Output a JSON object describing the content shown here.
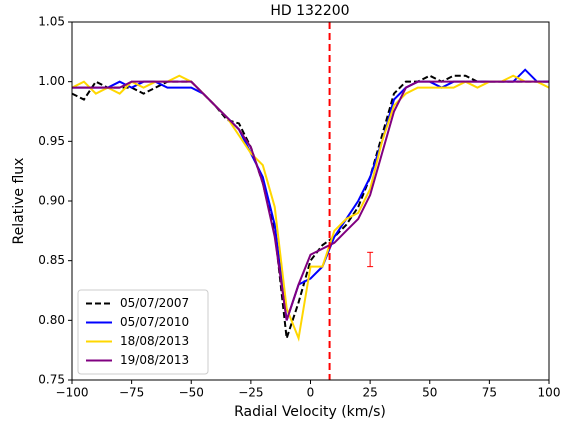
{
  "chart_data": {
    "type": "line",
    "title": "HD 132200",
    "x_label": "Radial Velocity (km/s)",
    "y_label": "Relative flux",
    "xlim": [
      -100,
      100
    ],
    "ylim": [
      0.75,
      1.05
    ],
    "xticks": [
      {
        "value": -100,
        "label": "−100"
      },
      {
        "value": -75,
        "label": "−75"
      },
      {
        "value": -50,
        "label": "−50"
      },
      {
        "value": -25,
        "label": "−25"
      },
      0,
      25,
      50,
      75,
      100
    ],
    "yticks": [
      {
        "value": 0.75,
        "label": "0.75"
      },
      {
        "value": 0.8,
        "label": "0.80"
      },
      {
        "value": 0.85,
        "label": "0.85"
      },
      {
        "value": 0.9,
        "label": "0.90"
      },
      {
        "value": 0.95,
        "label": "0.95"
      },
      {
        "value": 1.0,
        "label": "1.00"
      },
      {
        "value": 1.05,
        "label": "1.05"
      }
    ],
    "legend": "lower left",
    "x": [
      -100,
      -95,
      -90,
      -85,
      -80,
      -75,
      -70,
      -65,
      -60,
      -55,
      -50,
      -45,
      -40,
      -35,
      -30,
      -25,
      -20,
      -15,
      -10,
      -5,
      0,
      5,
      10,
      15,
      20,
      25,
      30,
      35,
      40,
      45,
      50,
      55,
      60,
      65,
      70,
      75,
      80,
      85,
      90,
      95,
      100
    ],
    "series": [
      {
        "name": "05/07/2007",
        "color": "#000000",
        "linestyle": "dashed",
        "values": [
          0.99,
          0.985,
          1.0,
          0.995,
          0.995,
          0.995,
          0.99,
          0.995,
          1.0,
          1.0,
          1.0,
          0.99,
          0.98,
          0.968,
          0.965,
          0.945,
          0.915,
          0.875,
          0.785,
          0.815,
          0.85,
          0.863,
          0.87,
          0.88,
          0.895,
          0.92,
          0.955,
          0.99,
          1.0,
          1.0,
          1.005,
          1.0,
          1.005,
          1.005,
          1.0,
          1.0,
          1.0,
          1.0,
          1.0,
          1.0,
          1.0
        ]
      },
      {
        "name": "05/07/2010",
        "color": "#0000ff",
        "linestyle": "solid",
        "values": [
          0.995,
          0.995,
          0.995,
          0.995,
          1.0,
          0.995,
          1.0,
          1.0,
          0.995,
          0.995,
          0.995,
          0.99,
          0.98,
          0.97,
          0.96,
          0.94,
          0.92,
          0.88,
          0.8,
          0.83,
          0.835,
          0.845,
          0.87,
          0.885,
          0.9,
          0.92,
          0.95,
          0.985,
          0.995,
          1.0,
          1.0,
          0.995,
          1.0,
          1.0,
          1.0,
          1.0,
          1.0,
          1.0,
          1.01,
          1.0,
          1.0
        ]
      },
      {
        "name": "18/08/2013",
        "color": "#ffd700",
        "linestyle": "solid",
        "values": [
          0.995,
          1.0,
          0.99,
          0.995,
          0.99,
          1.0,
          0.995,
          1.0,
          1.0,
          1.005,
          1.0,
          0.99,
          0.98,
          0.97,
          0.955,
          0.94,
          0.93,
          0.895,
          0.81,
          0.785,
          0.845,
          0.845,
          0.875,
          0.885,
          0.89,
          0.91,
          0.95,
          0.98,
          0.99,
          0.995,
          0.995,
          0.995,
          0.995,
          1.0,
          0.995,
          1.0,
          1.0,
          1.005,
          1.0,
          1.0,
          0.995
        ]
      },
      {
        "name": "19/08/2013",
        "color": "#800080",
        "linestyle": "solid",
        "values": [
          0.995,
          0.995,
          0.995,
          0.995,
          0.995,
          1.0,
          1.0,
          1.0,
          1.0,
          1.0,
          1.0,
          0.99,
          0.98,
          0.97,
          0.96,
          0.945,
          0.915,
          0.87,
          0.8,
          0.83,
          0.855,
          0.86,
          0.865,
          0.875,
          0.885,
          0.905,
          0.94,
          0.975,
          0.995,
          1.0,
          1.0,
          1.0,
          1.0,
          1.0,
          1.0,
          1.0,
          1.0,
          1.0,
          1.0,
          1.0,
          1.0
        ]
      }
    ],
    "vline": {
      "x": 8,
      "color": "#ff0000"
    },
    "errorbar": {
      "x": 25,
      "y": 0.851,
      "err": 0.006,
      "color": "#ff0000"
    }
  }
}
